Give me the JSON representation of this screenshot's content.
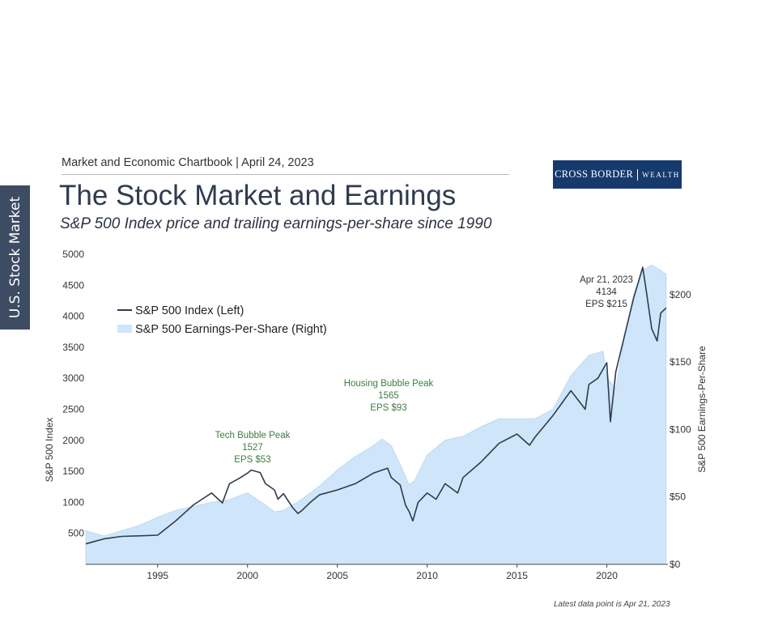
{
  "side_tab": "U.S. Stock Market",
  "header": "Market and Economic Chartbook | April 24, 2023",
  "logo": {
    "word1": "CROSS BORDER",
    "word2": "WEALTH"
  },
  "title": "The Stock Market and Earnings",
  "subtitle": "S&P 500 Index price and trailing earnings-per-share since 1990",
  "footnote": "Latest data point is Apr 21, 2023",
  "colors": {
    "price_line": "#2f3b4f",
    "eps_area": "#cfe6fa",
    "annotation_green": "#3f7b45",
    "side_tab": "#3d4c63",
    "logo_bg": "#163a6c"
  },
  "chart_data": {
    "type": "line",
    "xlim": [
      1991,
      2023.4
    ],
    "x_ticks": [
      "1995",
      "2000",
      "2005",
      "2010",
      "2015",
      "2020"
    ],
    "y_left": {
      "label": "S&P 500 Index",
      "ticks": [
        "500",
        "1000",
        "1500",
        "2000",
        "2500",
        "3000",
        "3500",
        "4000",
        "4500",
        "5000"
      ],
      "range": [
        0,
        5000
      ]
    },
    "y_right": {
      "label": "S&P 500 Earnings-Per-Share",
      "ticks": [
        "$0",
        "$50",
        "$100",
        "$150",
        "$200"
      ],
      "range": [
        0,
        230
      ]
    },
    "legend": {
      "placement": "top-left",
      "items": [
        "S&P 500 Index (Left)",
        "S&P 500 Earnings-Per-Share (Right)"
      ]
    },
    "series": [
      {
        "name": "S&P 500 Index (Left)",
        "axis": "left",
        "x": [
          1991,
          1992,
          1993,
          1994,
          1995,
          1996,
          1997,
          1998,
          1998.6,
          1999,
          1999.5,
          2000,
          2000.2,
          2000.7,
          2001,
          2001.5,
          2001.7,
          2002,
          2002.5,
          2002.8,
          2003,
          2003.5,
          2004,
          2005,
          2006,
          2007,
          2007.8,
          2008,
          2008.5,
          2008.8,
          2009,
          2009.2,
          2009.5,
          2010,
          2010.5,
          2011,
          2011.7,
          2012,
          2013,
          2014,
          2015,
          2015.7,
          2016,
          2017,
          2018,
          2018.8,
          2019,
          2019.5,
          2020,
          2020.2,
          2020.5,
          2021,
          2021.5,
          2022,
          2022.2,
          2022.5,
          2022.8,
          2023,
          2023.3
        ],
        "values": [
          330,
          410,
          450,
          460,
          470,
          700,
          960,
          1150,
          990,
          1300,
          1380,
          1470,
          1520,
          1480,
          1300,
          1200,
          1050,
          1140,
          920,
          820,
          860,
          1000,
          1120,
          1200,
          1300,
          1470,
          1550,
          1400,
          1280,
          950,
          850,
          700,
          1000,
          1150,
          1050,
          1300,
          1150,
          1400,
          1650,
          1950,
          2100,
          1920,
          2050,
          2400,
          2800,
          2500,
          2900,
          3000,
          3250,
          2300,
          3100,
          3700,
          4300,
          4790,
          4400,
          3800,
          3600,
          4050,
          4134
        ]
      },
      {
        "name": "S&P 500 Earnings-Per-Share (Right)",
        "axis": "right",
        "x": [
          1991,
          1992,
          1993,
          1994,
          1995,
          1996,
          1997,
          1998,
          1999,
          2000,
          2001,
          2001.5,
          2002,
          2003,
          2004,
          2005,
          2006,
          2007,
          2007.5,
          2008,
          2008.5,
          2009,
          2009.3,
          2010,
          2011,
          2012,
          2013,
          2014,
          2015,
          2016,
          2017,
          2018,
          2019,
          2019.8,
          2020,
          2020.5,
          2021,
          2021.5,
          2022,
          2022.5,
          2023,
          2023.3
        ],
        "values": [
          25,
          21,
          25,
          29,
          35,
          40,
          43,
          46,
          48,
          53,
          44,
          39,
          40,
          48,
          58,
          70,
          80,
          88,
          93,
          88,
          74,
          59,
          62,
          81,
          92,
          95,
          102,
          108,
          108,
          108,
          115,
          140,
          155,
          158,
          139,
          130,
          170,
          200,
          218,
          222,
          218,
          215
        ]
      }
    ],
    "annotations": [
      {
        "lines": [
          "Tech Bubble Peak",
          "1527",
          "EPS $53"
        ],
        "color": "green"
      },
      {
        "lines": [
          "Housing Bubble Peak",
          "1565",
          "EPS $93"
        ],
        "color": "green"
      },
      {
        "lines": [
          "Apr 21, 2023",
          "4134",
          "EPS $215"
        ],
        "color": "dark"
      }
    ]
  }
}
